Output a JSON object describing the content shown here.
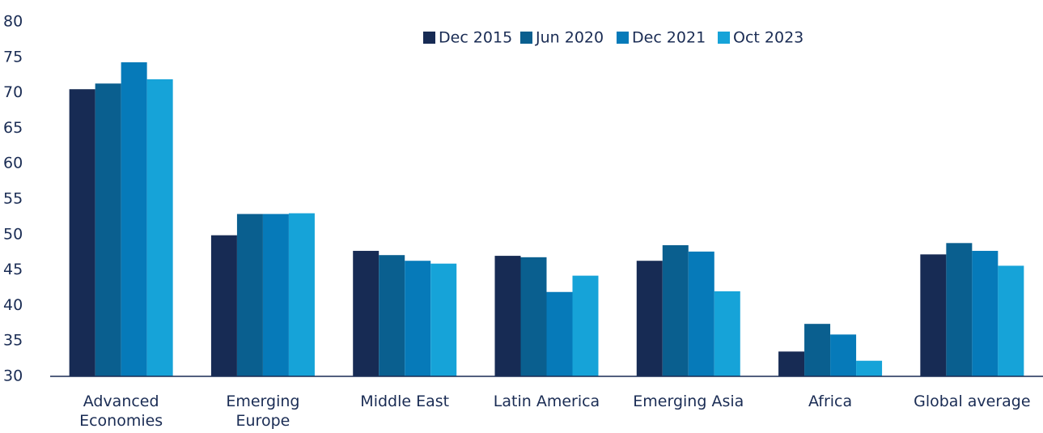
{
  "chart_data": {
    "type": "bar",
    "categories": [
      "Advanced Economies",
      "Emerging Europe",
      "Middle East",
      "Latin America",
      "Emerging Asia",
      "Africa",
      "Global average"
    ],
    "series": [
      {
        "name": "Dec 2015",
        "color": "#172b54",
        "values": [
          70.5,
          49.9,
          47.7,
          47.0,
          46.3,
          33.5,
          47.2
        ]
      },
      {
        "name": "Jun 2020",
        "color": "#0a5f8f",
        "values": [
          71.3,
          52.9,
          47.1,
          46.8,
          48.5,
          37.4,
          48.8
        ]
      },
      {
        "name": "Dec 2021",
        "color": "#067ab9",
        "values": [
          74.3,
          52.9,
          46.3,
          41.9,
          47.6,
          35.9,
          47.7
        ]
      },
      {
        "name": "Oct 2023",
        "color": "#16a3d8",
        "values": [
          71.9,
          53.0,
          45.9,
          44.2,
          42.0,
          32.2,
          45.6
        ]
      }
    ],
    "ylim": [
      30,
      80
    ],
    "yticks": [
      30,
      35,
      40,
      45,
      50,
      55,
      60,
      65,
      70,
      75,
      80
    ],
    "grid": false,
    "legend": "top"
  }
}
